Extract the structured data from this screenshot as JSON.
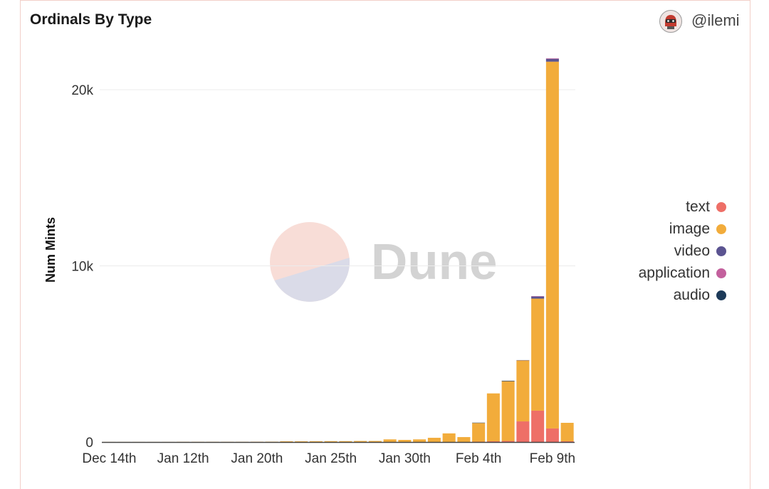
{
  "header": {
    "username": "@ilemi"
  },
  "watermark": {
    "logo_text": "Dune",
    "logo_colors": {
      "top": "#F8DDD7",
      "bottom": "#DADBE8",
      "text": "#D3D3D3"
    }
  },
  "chart_data": {
    "type": "bar",
    "stacked": true,
    "title": "Ordinals By Type",
    "ylabel": "Num Mints",
    "ylim": [
      0,
      22000
    ],
    "yticks": [
      0,
      10000,
      20000
    ],
    "ytick_labels": [
      "0",
      "10k",
      "20k"
    ],
    "grid": true,
    "legend_position": "right",
    "categories": [
      "Dec 14th",
      "",
      "",
      "",
      "",
      "Jan 12th",
      "",
      "",
      "",
      "",
      "Jan 20th",
      "",
      "",
      "",
      "",
      "Jan 25th",
      "",
      "",
      "",
      "",
      "Jan 30th",
      "",
      "",
      "",
      "",
      "Feb 4th",
      "",
      "",
      "",
      "",
      "Feb 9th",
      ""
    ],
    "series": [
      {
        "name": "text",
        "color": "#EE6F67",
        "values": [
          0,
          0,
          0,
          0,
          0,
          0,
          0,
          0,
          0,
          0,
          0,
          0,
          0,
          0,
          0,
          0,
          0,
          0,
          0,
          0,
          0,
          0,
          0,
          0,
          0,
          20,
          40,
          60,
          1170,
          1780,
          770,
          40
        ]
      },
      {
        "name": "image",
        "color": "#F2AC3B",
        "values": [
          5,
          5,
          5,
          5,
          5,
          10,
          10,
          10,
          10,
          10,
          15,
          20,
          40,
          40,
          45,
          50,
          50,
          60,
          60,
          150,
          120,
          150,
          240,
          490,
          280,
          1060,
          2720,
          3390,
          3460,
          6360,
          20820,
          1050
        ]
      },
      {
        "name": "video",
        "color": "#5B5491",
        "values": [
          0,
          0,
          0,
          0,
          0,
          0,
          0,
          0,
          0,
          0,
          0,
          0,
          0,
          0,
          0,
          0,
          0,
          0,
          0,
          0,
          0,
          0,
          0,
          0,
          0,
          0,
          0,
          0,
          20,
          120,
          160,
          0
        ]
      },
      {
        "name": "application",
        "color": "#C3609D",
        "values": [
          0,
          0,
          0,
          0,
          0,
          0,
          0,
          0,
          0,
          0,
          0,
          0,
          0,
          0,
          0,
          0,
          0,
          0,
          0,
          0,
          0,
          0,
          0,
          0,
          0,
          0,
          0,
          0,
          0,
          20,
          30,
          0
        ]
      },
      {
        "name": "audio",
        "color": "#1D3A59",
        "values": [
          0,
          0,
          0,
          0,
          0,
          0,
          0,
          0,
          0,
          0,
          0,
          0,
          0,
          0,
          0,
          0,
          0,
          0,
          0,
          0,
          0,
          0,
          0,
          0,
          0,
          20,
          0,
          30,
          0,
          0,
          0,
          0
        ]
      }
    ]
  }
}
